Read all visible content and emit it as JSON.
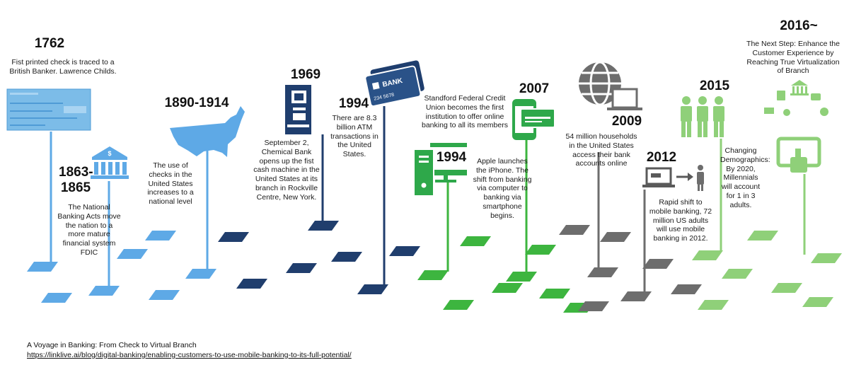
{
  "colors": {
    "light_blue": "#5ea9e6",
    "navy": "#203e6d",
    "green": "#3db53f",
    "gray": "#6d6d6d",
    "light_green": "#8fd079"
  },
  "milestones": [
    {
      "year": "1762",
      "text": "Fist printed check is traced to a British Banker. Lawrence Childs.",
      "icon": "check-icon"
    },
    {
      "year": "1863-1865",
      "text": "The National Banking Acts move the nation to a more mature financial system FDIC",
      "icon": "bank-building-icon"
    },
    {
      "year": "1890-1914",
      "text": "The use of checks in the United States increases to a national level",
      "icon": "usa-map-icon"
    },
    {
      "year": "1969",
      "text": "September 2, Chemical Bank opens up the fist cash machine in the United States at its branch in Rockville Centre, New York.",
      "icon": "atm-icon"
    },
    {
      "year": "1994",
      "text": "There are 8.3 billion ATM transactions in the United States.",
      "icon": "bank-card-icon",
      "card_label": "BANK",
      "card_number": "234 5678"
    },
    {
      "year": "1994",
      "text": "Standford Federal Credit Union becomes the first institution to offer online banking to all its members",
      "icon": "desktop-computer-icon"
    },
    {
      "year": "2007",
      "text": "Apple launches the iPhone. The shift from banking via computer to banking via smartphone begins.",
      "icon": "smartphone-icon"
    },
    {
      "year": "2009",
      "text": "54 million households in the United States access their bank accounts online",
      "icon": "globe-laptop-icon"
    },
    {
      "year": "2012",
      "text": "Rapid shift to mobile banking, 72 million US adults will use mobile banking in 2012.",
      "icon": "laptop-to-mobile-icon"
    },
    {
      "year": "2015",
      "text": "Changing Demographics: By 2020, Millennials will account for 1 in 3 adults.",
      "icon": "people-icon"
    },
    {
      "year": "2016~",
      "text": "The Next Step: Enhance the Customer Experience by Reaching True Virtualization of Branch",
      "icon": "virtual-branch-icon"
    }
  ],
  "caption": {
    "title": "A Voyage in Banking: From Check to Virtual Branch",
    "url": "https://linklive.ai/blog/digital-banking/enabling-customers-to-use-mobile-banking-to-its-full-potential/"
  }
}
